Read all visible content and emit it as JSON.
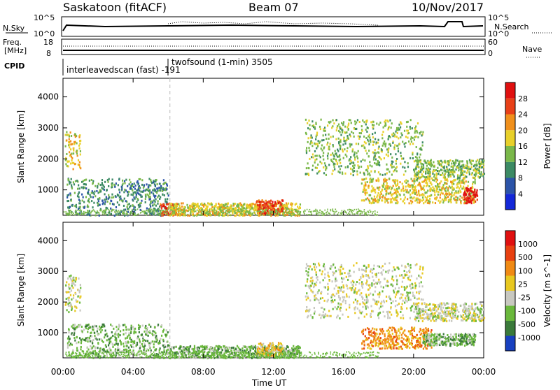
{
  "header": {
    "station": "Saskatoon (fitACF)",
    "beam": "Beam 07",
    "date": "10/Nov/2017"
  },
  "strips": {
    "sky_label": "N.Sky",
    "sky_ticks": [
      "10^5",
      "10^0"
    ],
    "search_label": "N.Search",
    "search_ticks": [
      "10^5",
      "10^0"
    ],
    "freq_label_1": "Freq.",
    "freq_label_2": "[MHz]",
    "freq_ticks": [
      "18",
      "8"
    ],
    "nave_label": "Nave",
    "nave_ticks": [
      "60",
      "0"
    ],
    "cpid_label": "CPID",
    "cpid_events": [
      {
        "text": "interleavedscan (fast) -191",
        "time_h": 0
      },
      {
        "text": "twofsound (1-min) 3505",
        "time_h": 6.1
      }
    ]
  },
  "x_axis": {
    "label": "Time UT",
    "ticks": [
      "00:00",
      "04:00",
      "08:00",
      "12:00",
      "16:00",
      "20:00",
      "00:00"
    ],
    "range_h": [
      0,
      24
    ]
  },
  "chart_data": [
    {
      "type": "heatmap",
      "panel": "power",
      "ylabel": "Slant Range [km]",
      "yticks": [
        "4000",
        "3000",
        "2000",
        "1000"
      ],
      "ylim": [
        180,
        4600
      ],
      "colorbar_label": "Power [dB]",
      "colorbar_ticks": [
        "28",
        "24",
        "20",
        "16",
        "12",
        "8",
        "4"
      ],
      "colors": [
        "#1428d8",
        "#2c54a8",
        "#3c8a64",
        "#7ab84a",
        "#e8d02a",
        "#f0901c",
        "#e84018",
        "#e01010"
      ],
      "bands": [
        {
          "t0": 0.1,
          "t1": 1.0,
          "r0": 1700,
          "r1": 2900,
          "level": 4
        },
        {
          "t0": 0.2,
          "t1": 6.0,
          "r0": 200,
          "r1": 1400,
          "level": 2
        },
        {
          "t0": 5.5,
          "t1": 6.5,
          "r0": 200,
          "r1": 600,
          "level": 6
        },
        {
          "t0": 6.0,
          "t1": 13.5,
          "r0": 200,
          "r1": 600,
          "level": 4
        },
        {
          "t0": 11.0,
          "t1": 12.5,
          "r0": 250,
          "r1": 700,
          "level": 6
        },
        {
          "t0": 13.8,
          "t1": 20.5,
          "r0": 1500,
          "r1": 3300,
          "level": 3
        },
        {
          "t0": 17.0,
          "t1": 23.5,
          "r0": 600,
          "r1": 1400,
          "level": 4
        },
        {
          "t0": 20.0,
          "t1": 24.0,
          "r0": 1400,
          "r1": 2000,
          "level": 3
        },
        {
          "t0": 22.8,
          "t1": 23.6,
          "r0": 600,
          "r1": 1100,
          "level": 7
        }
      ]
    },
    {
      "type": "heatmap",
      "panel": "velocity",
      "ylabel": "Slant Range [km]",
      "yticks": [
        "4000",
        "3000",
        "2000",
        "1000"
      ],
      "ylim": [
        180,
        4600
      ],
      "colorbar_label": "Velocity [m s^-1]",
      "colorbar_ticks": [
        "1000",
        "500",
        "100",
        "25",
        "-25",
        "-100",
        "-500",
        "-1000"
      ],
      "colors": [
        "#1840c0",
        "#3a7a3a",
        "#6ab83c",
        "#c8c8c0",
        "#e8c820",
        "#f08a14",
        "#e84010",
        "#e01010"
      ],
      "bands": [
        {
          "t0": 0.1,
          "t1": 1.0,
          "r0": 1700,
          "r1": 2900,
          "level": 3
        },
        {
          "t0": 0.2,
          "t1": 6.0,
          "r0": 200,
          "r1": 1300,
          "level": 2
        },
        {
          "t0": 6.0,
          "t1": 13.5,
          "r0": 200,
          "r1": 600,
          "level": 2
        },
        {
          "t0": 11.0,
          "t1": 12.5,
          "r0": 250,
          "r1": 700,
          "level": 4
        },
        {
          "t0": 13.8,
          "t1": 20.5,
          "r0": 1500,
          "r1": 3300,
          "level": 3
        },
        {
          "t0": 17.0,
          "t1": 21.0,
          "r0": 500,
          "r1": 1200,
          "level": 5
        },
        {
          "t0": 20.0,
          "t1": 24.0,
          "r0": 1400,
          "r1": 2000,
          "level": 3
        },
        {
          "t0": 20.5,
          "t1": 23.5,
          "r0": 600,
          "r1": 1000,
          "level": 2
        }
      ]
    }
  ]
}
